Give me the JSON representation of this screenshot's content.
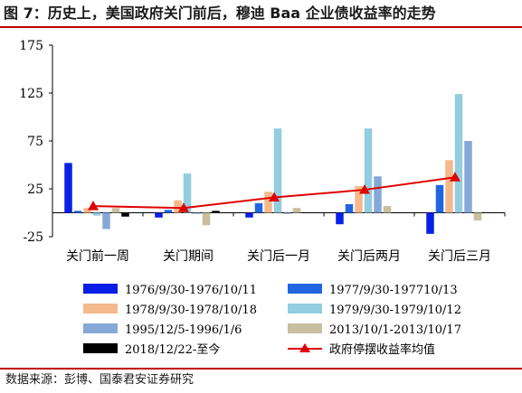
{
  "title": "图 7：历史上，美国政府关门前后，穆迪 Baa 企业债收益率的走势",
  "source": "数据来源：彭博、国泰君安证券研究",
  "chart_data": {
    "type": "bar",
    "categories": [
      "关门前一周",
      "关门期间",
      "关门后一月",
      "关门后两月",
      "关门后三月"
    ],
    "ylim": [
      -25,
      175
    ],
    "yticks": [
      -25,
      25,
      75,
      125,
      175
    ],
    "grid": false,
    "legend_position": "bottom",
    "series": [
      {
        "name": "1976/9/30-1976/10/11",
        "color": "#0a1fe6",
        "values": [
          52,
          -5,
          -5,
          -12,
          -22
        ]
      },
      {
        "name": "1977/9/30-197710/13",
        "color": "#2166e0",
        "values": [
          2,
          3,
          10,
          9,
          29
        ]
      },
      {
        "name": "1978/9/30-1978/10/18",
        "color": "#f5b98c",
        "values": [
          5,
          13,
          22,
          28,
          55
        ]
      },
      {
        "name": "1979/9/30-1979/10/12",
        "color": "#93cde0",
        "values": [
          -3,
          41,
          88,
          88,
          124
        ]
      },
      {
        "name": "1995/12/5-1996/1/6",
        "color": "#86a8d6",
        "values": [
          -17,
          0,
          0,
          38,
          75
        ]
      },
      {
        "name": "2013/10/1-2013/10/17",
        "color": "#c8bea0",
        "values": [
          5,
          -13,
          5,
          7,
          -8
        ]
      },
      {
        "name": "2018/12/22-至今",
        "color": "#000000",
        "values": [
          -4,
          2,
          null,
          null,
          null
        ]
      }
    ],
    "average": {
      "name": "政府停摆收益率均值",
      "color": "#e00000",
      "values": [
        7,
        5,
        16,
        24,
        37
      ]
    }
  }
}
